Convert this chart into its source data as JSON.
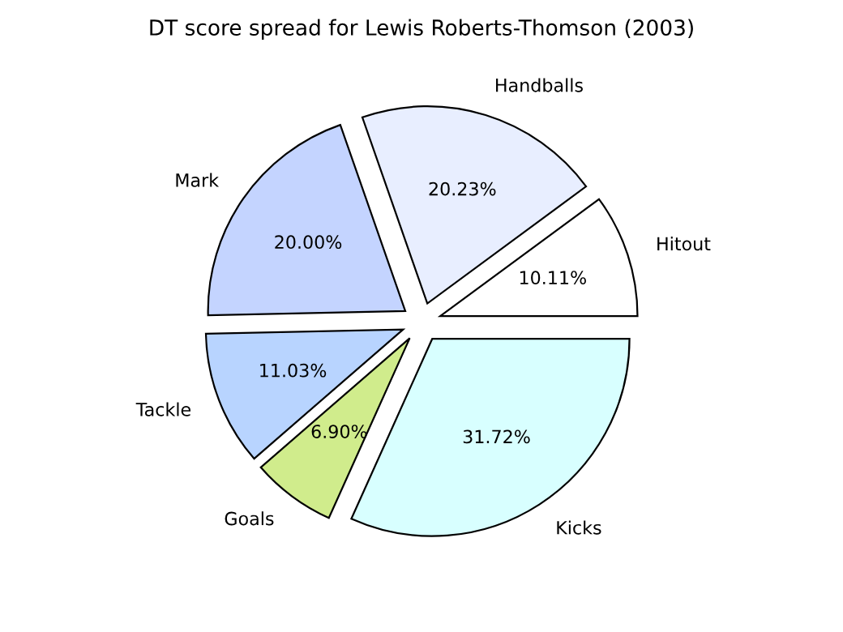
{
  "chart_data": {
    "type": "pie",
    "title": "DT score spread for Lewis Roberts-Thomson (2003)",
    "categories": [
      "Hitout",
      "Handballs",
      "Mark",
      "Tackle",
      "Goals",
      "Kicks"
    ],
    "values": [
      10.11,
      20.23,
      20.0,
      11.03,
      6.9,
      31.72
    ],
    "value_labels": [
      "10.11%",
      "20.23%",
      "20.00%",
      "11.03%",
      "6.90%",
      "31.72%"
    ],
    "colors": [
      "#ffffff",
      "#e8eeff",
      "#c4d4ff",
      "#b8d4ff",
      "#d0ec8c",
      "#d8ffff"
    ]
  }
}
